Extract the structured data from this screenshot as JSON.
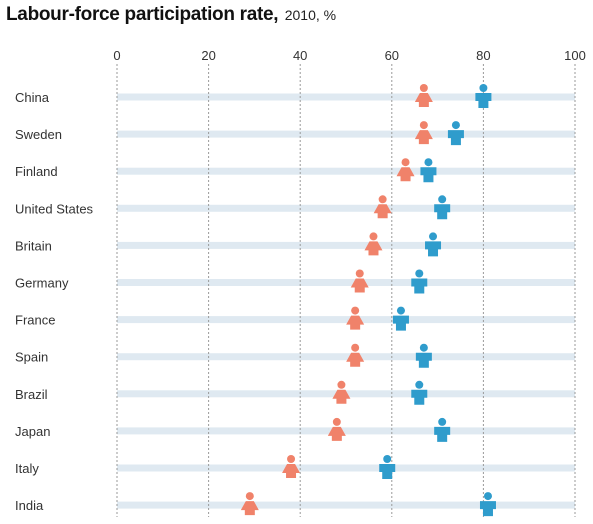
{
  "title": "Labour-force participation rate,",
  "subtitle": "2010, %",
  "chart_data": {
    "type": "scatter",
    "title": "Labour-force participation rate,",
    "subtitle": "2010, %",
    "xlabel": "",
    "ylabel": "",
    "xlim": [
      0,
      100
    ],
    "xticks": [
      0,
      20,
      40,
      60,
      80,
      100
    ],
    "grid": true,
    "legend": "none",
    "categories": [
      "China",
      "Sweden",
      "Finland",
      "United States",
      "Britain",
      "Germany",
      "France",
      "Spain",
      "Brazil",
      "Japan",
      "Italy",
      "India"
    ],
    "series": [
      {
        "key": "women",
        "color": "#f0826a",
        "values": [
          67,
          67,
          63,
          58,
          56,
          53,
          52,
          52,
          49,
          48,
          38,
          29
        ]
      },
      {
        "key": "men",
        "color": "#2f9ccc",
        "values": [
          80,
          74,
          68,
          71,
          69,
          66,
          62,
          67,
          66,
          71,
          59,
          81
        ]
      }
    ]
  }
}
